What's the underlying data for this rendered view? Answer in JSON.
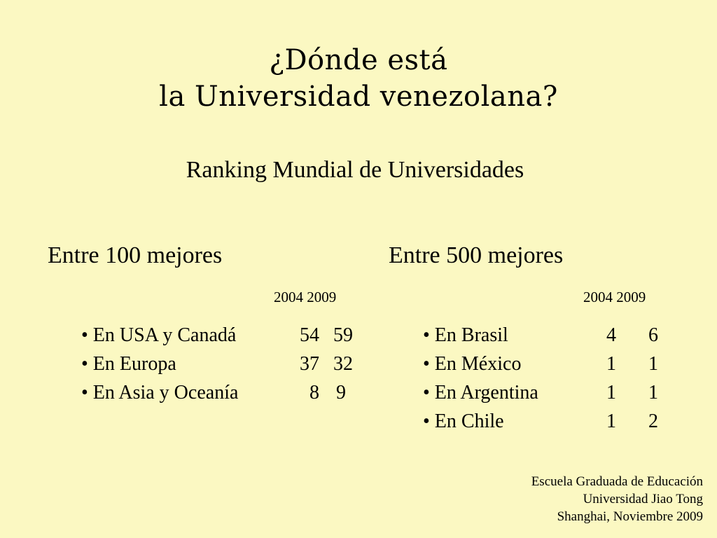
{
  "slide": {
    "title_line1": "¿Dónde está",
    "title_line2": "la Universidad venezolana?",
    "subtitle": "Ranking Mundial de Universidades",
    "background_color": "#fbf8c2"
  },
  "left_panel": {
    "heading": "Entre 100 mejores",
    "years": "2004 2009",
    "rows": [
      {
        "label": "• En USA y Canadá",
        "v2004": "54",
        "v2009": "59"
      },
      {
        "label": "• En Europa",
        "v2004": "37",
        "v2009": "32"
      },
      {
        "label": "• En Asia y Oceanía",
        "v2004": "8",
        "v2009": "9"
      }
    ]
  },
  "right_panel": {
    "heading": "Entre 500 mejores",
    "years": "2004 2009",
    "rows": [
      {
        "label": "• En Brasil",
        "v2004": "4",
        "v2009": "6"
      },
      {
        "label": "• En México",
        "v2004": "1",
        "v2009": "1"
      },
      {
        "label": "• En Argentina",
        "v2004": "1",
        "v2009": "1"
      },
      {
        "label": "• En Chile",
        "v2004": "1",
        "v2009": "2"
      }
    ]
  },
  "footer": {
    "line1": "Escuela Graduada de Educación",
    "line2": "Universidad Jiao Tong",
    "line3": "Shanghai, Noviembre 2009"
  }
}
